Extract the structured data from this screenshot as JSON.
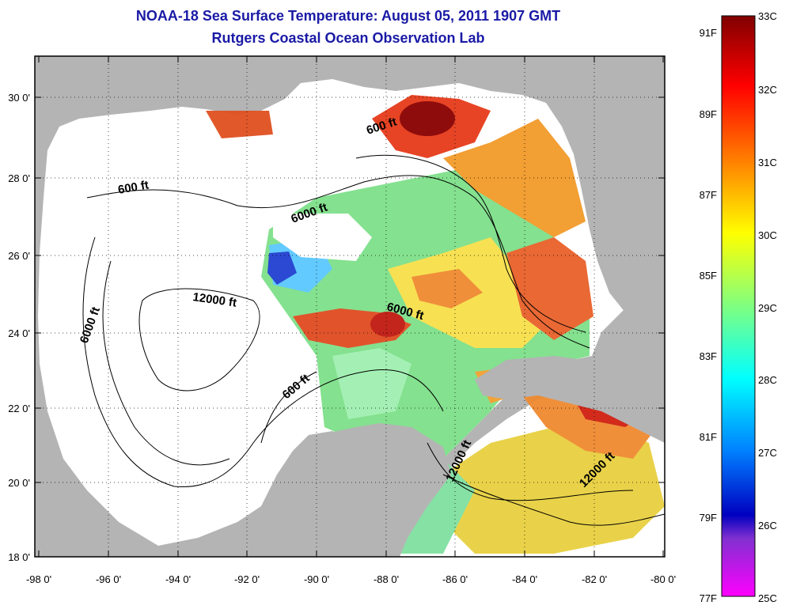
{
  "header": {
    "title": "NOAA-18 Sea Surface Temperature:  August 05, 2011 1907 GMT",
    "subtitle": "Rutgers Coastal Ocean Observation Lab"
  },
  "map": {
    "lon_ticks": [
      "-98 0'",
      "-96 0'",
      "-94 0'",
      "-92 0'",
      "-90 0'",
      "-88 0'",
      "-86 0'",
      "-84 0'",
      "-82 0'",
      "-80 0'"
    ],
    "lat_ticks": [
      "30 0'",
      "28 0'",
      "26 0'",
      "24 0'",
      "22 0'",
      "20 0'",
      "18 0'"
    ],
    "contour_labels": [
      "600 ft",
      "600 ft",
      "6000 ft",
      "12000 ft",
      "6000 ft",
      "6000 ft",
      "600 ft",
      "12000 ft",
      "12000 ft"
    ],
    "colors": {
      "land": "#b4b4b4",
      "water_nodata": "#ffffff",
      "contour": "#000000"
    }
  },
  "colorbar": {
    "celsius_labels": [
      "33C",
      "32C",
      "31C",
      "30C",
      "29C",
      "28C",
      "27C",
      "26C",
      "25C"
    ],
    "fahrenheit_labels": [
      "91F",
      "89F",
      "87F",
      "85F",
      "83F",
      "81F",
      "79F",
      "77F"
    ],
    "colors": [
      "#800000",
      "#ff0000",
      "#ff8000",
      "#ffff00",
      "#80ff80",
      "#00ffff",
      "#0080ff",
      "#0000c0",
      "#ff00ff"
    ]
  }
}
